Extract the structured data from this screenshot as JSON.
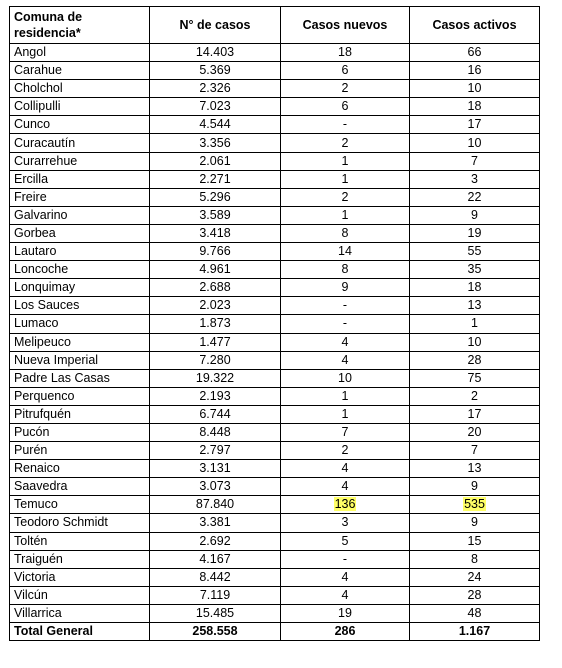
{
  "table": {
    "headers": [
      "Comuna de residencia*",
      "N° de casos",
      "Casos nuevos",
      "Casos activos"
    ],
    "rows": [
      {
        "comuna": "Angol",
        "casos": "14.403",
        "nuevos": "18",
        "activos": "66"
      },
      {
        "comuna": "Carahue",
        "casos": "5.369",
        "nuevos": "6",
        "activos": "16"
      },
      {
        "comuna": "Cholchol",
        "casos": "2.326",
        "nuevos": "2",
        "activos": "10"
      },
      {
        "comuna": "Collipulli",
        "casos": "7.023",
        "nuevos": "6",
        "activos": "18"
      },
      {
        "comuna": "Cunco",
        "casos": "4.544",
        "nuevos": "-",
        "activos": "17"
      },
      {
        "comuna": "Curacautín",
        "casos": "3.356",
        "nuevos": "2",
        "activos": "10"
      },
      {
        "comuna": "Curarrehue",
        "casos": "2.061",
        "nuevos": "1",
        "activos": "7"
      },
      {
        "comuna": "Ercilla",
        "casos": "2.271",
        "nuevos": "1",
        "activos": "3"
      },
      {
        "comuna": "Freire",
        "casos": "5.296",
        "nuevos": "2",
        "activos": "22"
      },
      {
        "comuna": "Galvarino",
        "casos": "3.589",
        "nuevos": "1",
        "activos": "9"
      },
      {
        "comuna": "Gorbea",
        "casos": "3.418",
        "nuevos": "8",
        "activos": "19"
      },
      {
        "comuna": "Lautaro",
        "casos": "9.766",
        "nuevos": "14",
        "activos": "55"
      },
      {
        "comuna": "Loncoche",
        "casos": "4.961",
        "nuevos": "8",
        "activos": "35"
      },
      {
        "comuna": "Lonquimay",
        "casos": "2.688",
        "nuevos": "9",
        "activos": "18"
      },
      {
        "comuna": "Los Sauces",
        "casos": "2.023",
        "nuevos": "-",
        "activos": "13"
      },
      {
        "comuna": "Lumaco",
        "casos": "1.873",
        "nuevos": "-",
        "activos": "1"
      },
      {
        "comuna": "Melipeuco",
        "casos": "1.477",
        "nuevos": "4",
        "activos": "10"
      },
      {
        "comuna": "Nueva Imperial",
        "casos": "7.280",
        "nuevos": "4",
        "activos": "28"
      },
      {
        "comuna": "Padre Las Casas",
        "casos": "19.322",
        "nuevos": "10",
        "activos": "75"
      },
      {
        "comuna": "Perquenco",
        "casos": "2.193",
        "nuevos": "1",
        "activos": "2"
      },
      {
        "comuna": "Pitrufquén",
        "casos": "6.744",
        "nuevos": "1",
        "activos": "17"
      },
      {
        "comuna": "Pucón",
        "casos": "8.448",
        "nuevos": "7",
        "activos": "20"
      },
      {
        "comuna": "Purén",
        "casos": "2.797",
        "nuevos": "2",
        "activos": "7"
      },
      {
        "comuna": "Renaico",
        "casos": "3.131",
        "nuevos": "4",
        "activos": "13"
      },
      {
        "comuna": "Saavedra",
        "casos": "3.073",
        "nuevos": "4",
        "activos": "9"
      },
      {
        "comuna": "Temuco",
        "casos": "87.840",
        "nuevos": "136",
        "activos": "535",
        "highlight": true
      },
      {
        "comuna": "Teodoro Schmidt",
        "casos": "3.381",
        "nuevos": "3",
        "activos": "9"
      },
      {
        "comuna": "Toltén",
        "casos": "2.692",
        "nuevos": "5",
        "activos": "15"
      },
      {
        "comuna": "Traiguén",
        "casos": "4.167",
        "nuevos": "-",
        "activos": "8"
      },
      {
        "comuna": "Victoria",
        "casos": "8.442",
        "nuevos": "4",
        "activos": "24"
      },
      {
        "comuna": "Vilcún",
        "casos": "7.119",
        "nuevos": "4",
        "activos": "28"
      },
      {
        "comuna": "Villarrica",
        "casos": "15.485",
        "nuevos": "19",
        "activos": "48"
      }
    ],
    "total": {
      "comuna": "Total General",
      "casos": "258.558",
      "nuevos": "286",
      "activos": "1.167"
    }
  },
  "colors": {
    "highlight": "#ffff66",
    "border": "#000000",
    "text": "#000000"
  }
}
